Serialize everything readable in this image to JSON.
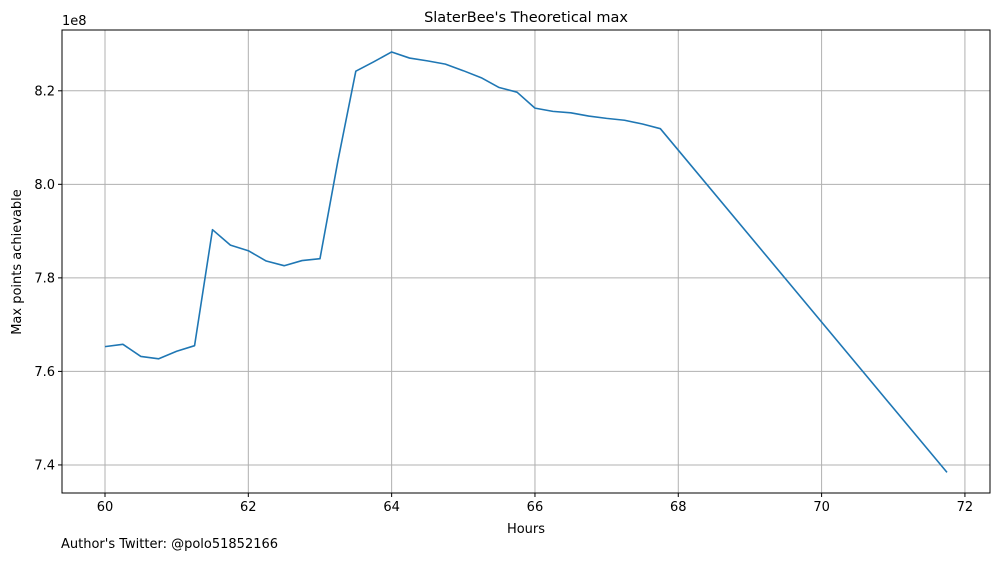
{
  "chart_data": {
    "type": "line",
    "title": "SlaterBee's Theoretical max",
    "xlabel": "Hours",
    "ylabel": "Max points achievable",
    "y_offset_label": "1e8",
    "xlim": [
      59.4,
      72.35
    ],
    "ylim": [
      7.34,
      8.33
    ],
    "x_ticks": [
      60,
      62,
      64,
      66,
      68,
      70,
      72
    ],
    "x_tick_labels": [
      "60",
      "62",
      "64",
      "66",
      "68",
      "70",
      "72"
    ],
    "y_ticks": [
      7.4,
      7.6,
      7.8,
      8.0,
      8.2
    ],
    "y_tick_labels": [
      "7.4",
      "7.6",
      "7.8",
      "8.0",
      "8.2"
    ],
    "grid": true,
    "line_color": "#1f77b4",
    "series": [
      {
        "x": [
          60.0,
          60.25,
          60.5,
          60.75,
          61.0,
          61.25,
          61.5,
          61.75,
          62.0,
          62.25,
          62.5,
          62.75,
          63.0,
          63.25,
          63.5,
          63.75,
          64.0,
          64.25,
          64.5,
          64.75,
          65.0,
          65.25,
          65.5,
          65.75,
          66.0,
          66.25,
          66.5,
          66.75,
          67.0,
          67.25,
          67.5,
          67.75,
          71.75
        ],
        "y": [
          7.653,
          7.658,
          7.632,
          7.627,
          7.643,
          7.655,
          7.903,
          7.87,
          7.858,
          7.836,
          7.826,
          7.837,
          7.841,
          8.05,
          8.242,
          8.262,
          8.283,
          8.27,
          8.264,
          8.257,
          8.243,
          8.228,
          8.207,
          8.197,
          8.163,
          8.156,
          8.153,
          8.146,
          8.141,
          8.137,
          8.129,
          8.119,
          7.384
        ]
      }
    ]
  },
  "footnote": "Author's Twitter: @polo51852166"
}
